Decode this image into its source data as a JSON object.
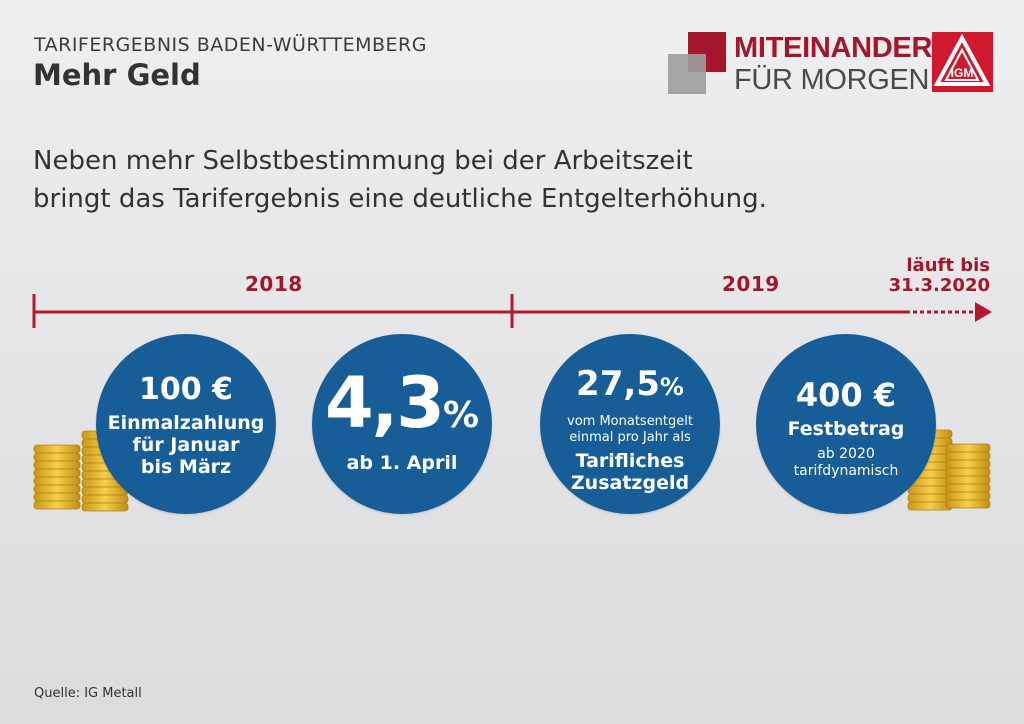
{
  "header": {
    "kicker": "TARIFERGEBNIS BADEN-WÜRTTEMBERG",
    "title": "Mehr Geld"
  },
  "logo": {
    "line1": "MITEINANDER",
    "line2": "FÜR MORGEN",
    "mark": "IGM",
    "colors": {
      "red": "#a3162b",
      "grey": "#9c9c9e",
      "igm_red": "#d0192e"
    }
  },
  "intro": {
    "line1": "Neben mehr Selbstbestimmung bei der Arbeitszeit",
    "line2": "bringt das Tarifergebnis eine deutliche Entgelterhöhung."
  },
  "timeline": {
    "year1": "2018",
    "year2": "2019",
    "until_line1": "läuft bis",
    "until_line2": "31.3.2020",
    "color": "#b21a2e"
  },
  "circles": {
    "c1": {
      "value": "100 €",
      "line1": "Einmalzahlung",
      "line2": "für Januar",
      "line3": "bis März"
    },
    "c2": {
      "value": "4,3",
      "unit": "%",
      "sub": "ab 1. April"
    },
    "c3": {
      "value": "27,5",
      "unit": "%",
      "line1": "vom Monatsentgelt",
      "line2": "einmal pro Jahr als",
      "line3": "Tarifliches",
      "line4": "Zusatzgeld"
    },
    "c4": {
      "value": "400 €",
      "line1": "Festbetrag",
      "line2": "ab 2020",
      "line3": "tarifdynamisch"
    },
    "color": "#175e99"
  },
  "footer": {
    "source": "Quelle: IG Metall"
  }
}
